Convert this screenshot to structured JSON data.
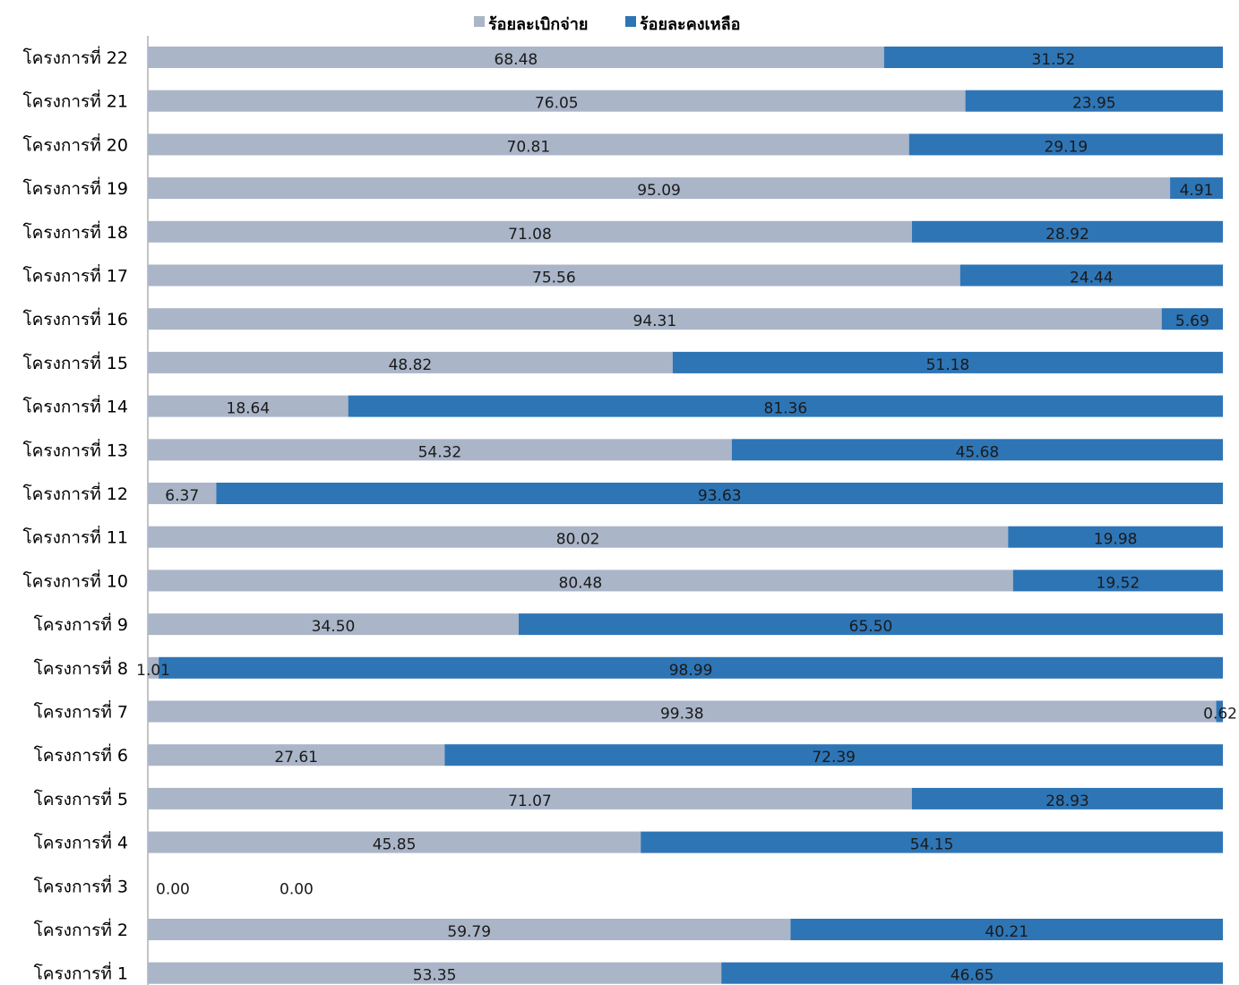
{
  "chart_data": {
    "type": "bar",
    "orientation": "horizontal",
    "stacked": "100%",
    "categories": [
      "โครงการที่ 1",
      "โครงการที่ 2",
      "โครงการที่ 3",
      "โครงการที่ 4",
      "โครงการที่ 5",
      "โครงการที่ 6",
      "โครงการที่ 7",
      "โครงการที่ 8",
      "โครงการที่ 9",
      "โครงการที่ 10",
      "โครงการที่ 11",
      "โครงการที่ 12",
      "โครงการที่ 13",
      "โครงการที่ 14",
      "โครงการที่ 15",
      "โครงการที่ 16",
      "โครงการที่ 17",
      "โครงการที่ 18",
      "โครงการที่ 19",
      "โครงการที่ 20",
      "โครงการที่ 21",
      "โครงการที่ 22"
    ],
    "series": [
      {
        "name": "ร้อยละเบิกจ่าย",
        "color": "#aab5c8",
        "values": [
          53.35,
          59.79,
          0.0,
          45.85,
          71.07,
          27.61,
          99.38,
          1.01,
          34.5,
          80.48,
          80.02,
          6.37,
          54.32,
          18.64,
          48.82,
          94.31,
          75.56,
          71.08,
          95.09,
          70.81,
          76.05,
          68.48
        ],
        "labels": [
          "53.35",
          "59.79",
          "0.00",
          "45.85",
          "71.07",
          "27.61",
          "99.38",
          "1.01",
          "34.50",
          "80.48",
          "80.02",
          "6.37",
          "54.32",
          "18.64",
          "48.82",
          "94.31",
          "75.56",
          "71.08",
          "95.09",
          "70.81",
          "76.05",
          "68.48"
        ]
      },
      {
        "name": "ร้อยละคงเหลือ",
        "color": "#2e75b6",
        "values": [
          46.65,
          40.21,
          0.0,
          54.15,
          28.93,
          72.39,
          0.62,
          98.99,
          65.5,
          19.52,
          19.98,
          93.63,
          45.68,
          81.36,
          51.18,
          5.69,
          24.44,
          28.92,
          4.91,
          29.19,
          23.95,
          31.52
        ],
        "labels": [
          "46.65",
          "40.21",
          "0.00",
          "54.15",
          "28.93",
          "72.39",
          "0.62",
          "98.99",
          "65.50",
          "19.52",
          "19.98",
          "93.63",
          "45.68",
          "81.36",
          "51.18",
          "5.69",
          "24.44",
          "28.92",
          "4.91",
          "29.19",
          "23.95",
          "31.52"
        ]
      }
    ],
    "xlim": [
      0,
      100
    ],
    "grid": false,
    "legend": "top-center"
  }
}
